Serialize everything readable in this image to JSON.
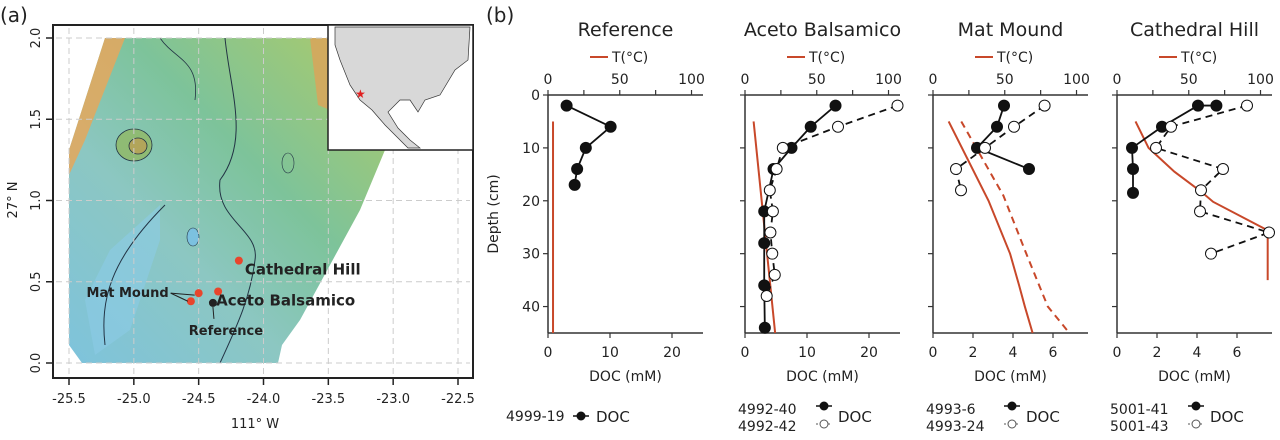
{
  "map_panel": {
    "label": "(a)",
    "xlabel": "111° W",
    "ylabel": "27° N",
    "xlim": [
      -25.6,
      -22.45
    ],
    "ylim": [
      -0.05,
      2.07
    ],
    "xticks": [
      "-25.5",
      "-25.0",
      "-24.5",
      "-24.0",
      "-23.5",
      "-23.0",
      "-22.5"
    ],
    "yticks": [
      "0.0",
      "0.5",
      "1.0",
      "1.5",
      "2.0"
    ],
    "grid": "dashed",
    "sites": [
      {
        "name": "Cathedral Hill",
        "lon": -24.19,
        "lat": 0.63,
        "color": "#e8452c"
      },
      {
        "name": "Aceto Balsamico",
        "lon": -24.35,
        "lat": 0.44,
        "color": "#e8452c"
      },
      {
        "name": "Mat Mound",
        "lon": -24.5,
        "lat": 0.43,
        "color": "#e8452c"
      },
      {
        "name": "",
        "lon": -24.56,
        "lat": 0.38,
        "color": "#e8452c"
      },
      {
        "name": "Reference",
        "lon": -24.39,
        "lat": 0.37,
        "color": "#222222"
      }
    ],
    "inset_marker": "red-star"
  },
  "chart_label": "(b)",
  "chart_data": [
    {
      "type": "line",
      "title": "Reference",
      "xlabel": "DOC (mM)",
      "ylabel": "Depth (cm)",
      "t_axis_label": "T(°C)",
      "xlim": [
        0,
        25
      ],
      "tlim": [
        0,
        108
      ],
      "ylim": [
        0,
        45
      ],
      "y_inverted": true,
      "xticks": [
        0,
        10,
        20
      ],
      "tticks": [
        0,
        50,
        100
      ],
      "yticks": [
        0,
        10,
        20,
        30,
        40
      ],
      "legend": {
        "cores": [
          "4999-19"
        ],
        "series_label": "DOC"
      },
      "series": [
        {
          "style": "filled",
          "points": [
            [
              3,
              2
            ],
            [
              10.1,
              6
            ],
            [
              6.1,
              10
            ],
            [
              4.7,
              14
            ],
            [
              4.3,
              17
            ]
          ]
        }
      ],
      "temperature": [
        {
          "style": "solid",
          "points": [
            [
              3.5,
              5
            ],
            [
              3.5,
              45
            ]
          ]
        }
      ]
    },
    {
      "type": "line",
      "title": "Aceto Balsamico",
      "xlabel": "DOC (mM)",
      "t_axis_label": "T(°C)",
      "xlim": [
        0,
        25
      ],
      "tlim": [
        0,
        108
      ],
      "ylim": [
        0,
        45
      ],
      "y_inverted": true,
      "xticks": [
        0,
        10,
        20
      ],
      "tticks": [
        0,
        50,
        100
      ],
      "yticks": [
        0,
        10,
        20,
        30,
        40
      ],
      "legend": {
        "cores": [
          "4992-40",
          "4992-42"
        ],
        "series_label": "DOC"
      },
      "series": [
        {
          "style": "filled",
          "points": [
            [
              14.6,
              2
            ],
            [
              10.6,
              6
            ],
            [
              7.5,
              10
            ],
            [
              4.6,
              14
            ],
            [
              3.1,
              22
            ],
            [
              3.1,
              28
            ],
            [
              3.1,
              36
            ],
            [
              3.2,
              44
            ]
          ]
        },
        {
          "style": "open",
          "points": [
            [
              24.6,
              2
            ],
            [
              15,
              6
            ],
            [
              6.1,
              10
            ],
            [
              5.1,
              14
            ],
            [
              4.0,
              18
            ],
            [
              4.5,
              22
            ],
            [
              4.1,
              26
            ],
            [
              4.4,
              30
            ],
            [
              4.8,
              34
            ],
            [
              3.5,
              38
            ]
          ]
        }
      ],
      "temperature": [
        {
          "style": "solid",
          "points": [
            [
              6,
              5
            ],
            [
              21,
              45
            ]
          ]
        }
      ]
    },
    {
      "type": "line",
      "title": "Mat Mound",
      "xlabel": "DOC (mM)",
      "t_axis_label": "T(°C)",
      "xlim": [
        0,
        7.75
      ],
      "tlim": [
        0,
        108
      ],
      "ylim": [
        0,
        45
      ],
      "y_inverted": true,
      "xticks": [
        0,
        2,
        4,
        6
      ],
      "tticks": [
        0,
        50,
        100
      ],
      "yticks": [
        0,
        10,
        20,
        30,
        40
      ],
      "legend": {
        "cores": [
          "4993-6",
          "4993-24"
        ],
        "series_label": "DOC"
      },
      "series": [
        {
          "style": "filled",
          "points": [
            [
              3.55,
              2
            ],
            [
              3.2,
              6
            ],
            [
              2.2,
              10
            ],
            [
              4.8,
              14
            ]
          ]
        },
        {
          "style": "open",
          "points": [
            [
              5.58,
              2
            ],
            [
              4.05,
              6
            ],
            [
              2.6,
              10
            ],
            [
              1.15,
              14
            ],
            [
              1.4,
              18
            ]
          ]
        }
      ],
      "temperature": [
        {
          "style": "solid",
          "points": [
            [
              10.9,
              5
            ],
            [
              38.7,
              20
            ],
            [
              53.7,
              30
            ],
            [
              60,
              36
            ],
            [
              64,
              40
            ],
            [
              69.4,
              45
            ]
          ]
        },
        {
          "style": "dashed",
          "points": [
            [
              19.7,
              5
            ],
            [
              49,
              19
            ],
            [
              65,
              30
            ],
            [
              80,
              40
            ],
            [
              95,
              45
            ]
          ]
        }
      ]
    },
    {
      "type": "line",
      "title": "Cathedral Hill",
      "xlabel": "DOC (mM)",
      "t_axis_label": "T(°C)",
      "xlim": [
        0,
        7.75
      ],
      "tlim": [
        0,
        108
      ],
      "ylim": [
        0,
        45
      ],
      "y_inverted": true,
      "xticks": [
        0,
        2,
        4,
        6
      ],
      "tticks": [
        0,
        50,
        100
      ],
      "yticks": [
        0,
        10,
        20,
        30,
        40
      ],
      "legend": {
        "cores": [
          "5001-41",
          "5001-43"
        ],
        "series_label": "DOC"
      },
      "series": [
        {
          "style": "filled",
          "points": [
            [
              4.97,
              2
            ],
            [
              4.05,
              2
            ],
            [
              2.25,
              6
            ],
            [
              0.75,
              10
            ],
            [
              0.8,
              14
            ],
            [
              0.8,
              18.5
            ]
          ]
        },
        {
          "style": "open",
          "points": [
            [
              6.5,
              2
            ],
            [
              2.7,
              6
            ],
            [
              1.95,
              10
            ],
            [
              5.3,
              14
            ],
            [
              4.2,
              18
            ],
            [
              4.15,
              22
            ],
            [
              7.6,
              26
            ],
            [
              4.7,
              30
            ]
          ]
        }
      ],
      "temperature": [
        {
          "style": "solid",
          "points": [
            [
              12.9,
              5
            ],
            [
              22,
              10
            ],
            [
              40,
              14.5
            ],
            [
              58.7,
              18.3
            ],
            [
              67,
              20.2
            ],
            [
              105,
              25.6
            ],
            [
              105,
              35
            ]
          ]
        }
      ]
    }
  ]
}
